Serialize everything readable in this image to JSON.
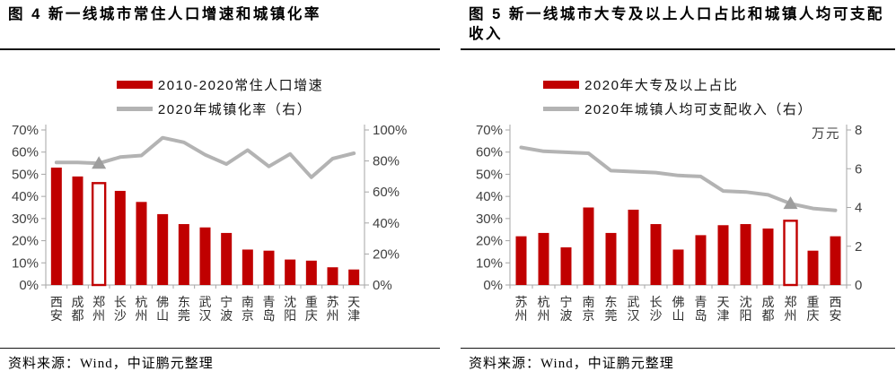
{
  "colors": {
    "bar_red": "#C00000",
    "line_gray": "#B3B3B3",
    "marker_gray": "#9E9E9E",
    "axis_line": "#A6A6A6",
    "tick_label": "#404040",
    "city_label": "#303030"
  },
  "panels": [
    {
      "title": "图 4  新一线城市常住人口增速和城镇化率",
      "source": "资料来源：Wind，中证鹏元整理"
    },
    {
      "title": "图 5  新一线城市大专及以上人口占比和城镇人均可支配收入",
      "source": "资料来源：Wind，中证鹏元整理"
    }
  ],
  "chart_data": [
    {
      "type": "bar+line",
      "categories": [
        "西安",
        "成都",
        "郑州",
        "长沙",
        "杭州",
        "佛山",
        "东莞",
        "武汉",
        "宁波",
        "南京",
        "青岛",
        "沈阳",
        "重庆",
        "苏州",
        "天津"
      ],
      "series": [
        {
          "name": "2010-2020常住人口增速",
          "type": "bar",
          "axis": "left",
          "color": "#C00000",
          "hollow_index": 2,
          "values": [
            53,
            49,
            46,
            42.5,
            37.5,
            32,
            27.5,
            26,
            23.5,
            16,
            15.5,
            11.5,
            11,
            8,
            7
          ]
        },
        {
          "name": "2020年城镇化率（右）",
          "type": "line",
          "axis": "right",
          "color": "#B3B3B3",
          "marker_index": 2,
          "marker_color": "#9E9E9E",
          "values": [
            79,
            79,
            78.5,
            82.5,
            83.5,
            95,
            92,
            84,
            78,
            87,
            76.5,
            84.5,
            69.5,
            81.5,
            85
          ]
        }
      ],
      "left_axis": {
        "min": 0,
        "max": 70,
        "step": 10,
        "suffix": "%",
        "title": ""
      },
      "right_axis": {
        "min": 0,
        "max": 100,
        "step": 20,
        "suffix": "%",
        "title": ""
      },
      "grid": false,
      "legend_position": "top"
    },
    {
      "type": "bar+line",
      "categories": [
        "苏州",
        "杭州",
        "宁波",
        "南京",
        "东莞",
        "武汉",
        "长沙",
        "佛山",
        "青岛",
        "天津",
        "沈阳",
        "成都",
        "郑州",
        "重庆",
        "西安"
      ],
      "series": [
        {
          "name": "2020年大专及以上占比",
          "type": "bar",
          "axis": "left",
          "color": "#C00000",
          "hollow_index": 12,
          "values": [
            22,
            23.5,
            17,
            35,
            23.5,
            34,
            27.5,
            16,
            22.5,
            27,
            27.5,
            25.5,
            29,
            15.5,
            22
          ]
        },
        {
          "name": "2020年城镇人均可支配收入（右）",
          "type": "line",
          "axis": "right",
          "color": "#B3B3B3",
          "marker_index": 12,
          "marker_color": "#9E9E9E",
          "values": [
            7.1,
            6.9,
            6.85,
            6.8,
            5.9,
            5.85,
            5.8,
            5.65,
            5.6,
            4.85,
            4.8,
            4.65,
            4.2,
            3.95,
            3.85
          ]
        }
      ],
      "left_axis": {
        "min": 0,
        "max": 70,
        "step": 10,
        "suffix": "%",
        "title": ""
      },
      "right_axis": {
        "min": 0,
        "max": 8,
        "step": 2,
        "suffix": "",
        "title": "万元"
      },
      "grid": false,
      "legend_position": "top"
    }
  ]
}
